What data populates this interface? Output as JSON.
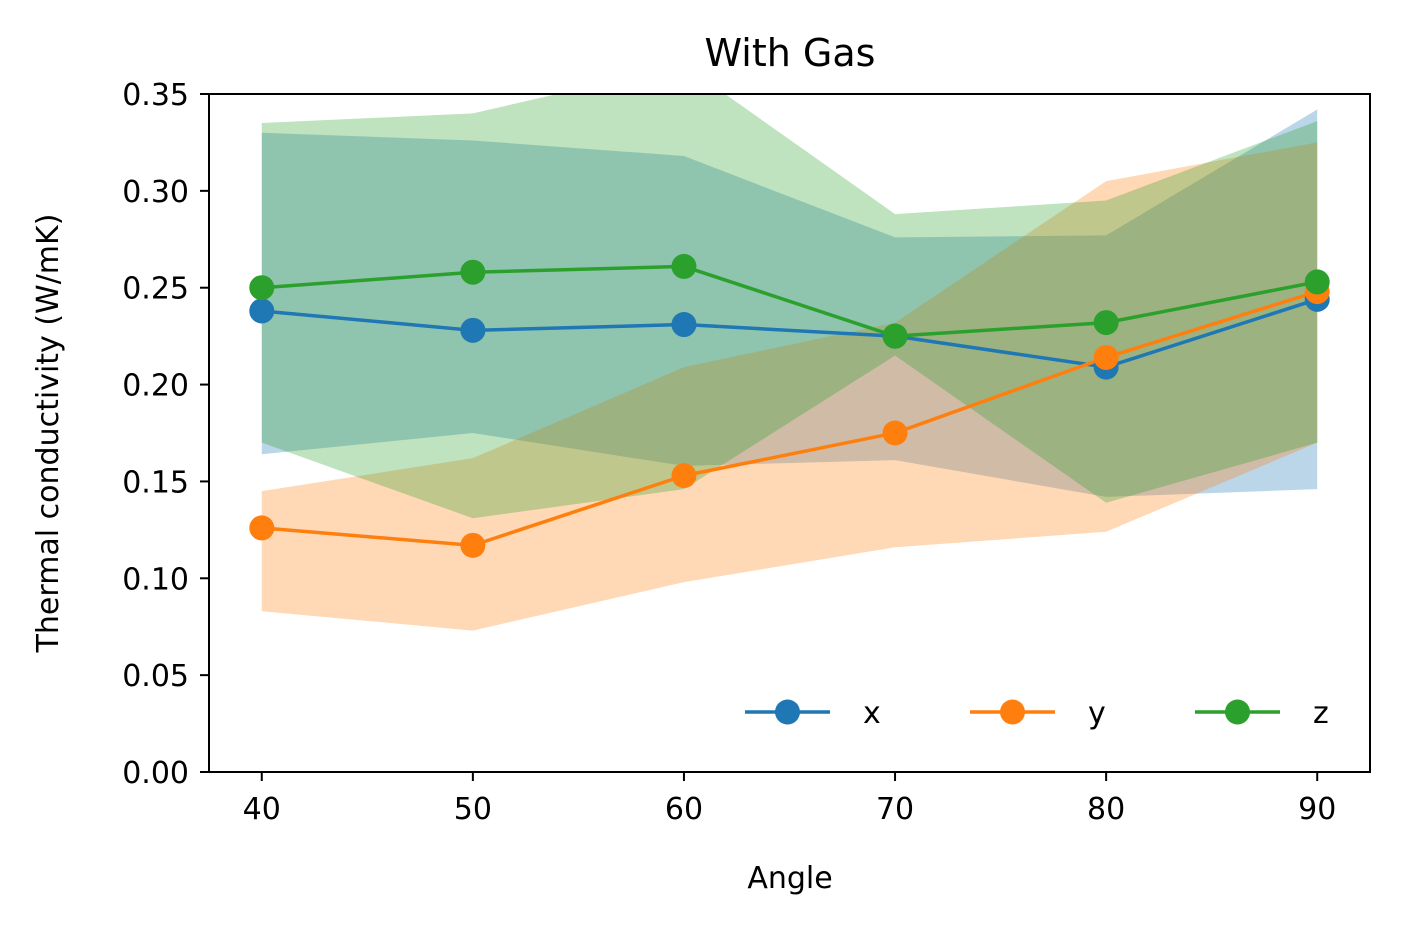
{
  "chart_data": {
    "type": "line",
    "title": "With Gas",
    "xlabel": "Angle",
    "ylabel": "Thermal conductivity (W/mK)",
    "x": [
      40,
      50,
      60,
      70,
      80,
      90
    ],
    "xticks": [
      "40",
      "50",
      "60",
      "70",
      "80",
      "90"
    ],
    "xlim": [
      37.5,
      92.5
    ],
    "ylim": [
      0,
      0.35
    ],
    "yticks": [
      "0.00",
      "0.05",
      "0.10",
      "0.15",
      "0.20",
      "0.25",
      "0.30",
      "0.35"
    ],
    "grid": false,
    "legend": {
      "placement": "lower-right",
      "columns": 3
    },
    "series": [
      {
        "name": "x",
        "color": "#1f77b4",
        "fill_color": "#1f77b4",
        "values": [
          0.238,
          0.228,
          0.231,
          0.225,
          0.209,
          0.244
        ],
        "band_upper": [
          0.33,
          0.326,
          0.318,
          0.276,
          0.277,
          0.342
        ],
        "band_lower": [
          0.164,
          0.175,
          0.158,
          0.161,
          0.142,
          0.146
        ]
      },
      {
        "name": "y",
        "color": "#ff7f0e",
        "fill_color": "#ff7f0e",
        "values": [
          0.126,
          0.117,
          0.153,
          0.175,
          0.214,
          0.248
        ],
        "band_upper": [
          0.145,
          0.162,
          0.209,
          0.232,
          0.305,
          0.325
        ],
        "band_lower": [
          0.083,
          0.073,
          0.098,
          0.116,
          0.124,
          0.17
        ]
      },
      {
        "name": "z",
        "color": "#2ca02c",
        "fill_color": "#2ca02c",
        "values": [
          0.25,
          0.258,
          0.261,
          0.225,
          0.232,
          0.253
        ],
        "band_upper": [
          0.335,
          0.34,
          0.365,
          0.288,
          0.295,
          0.336
        ],
        "band_lower": [
          0.17,
          0.131,
          0.146,
          0.215,
          0.139,
          0.17
        ]
      }
    ]
  }
}
